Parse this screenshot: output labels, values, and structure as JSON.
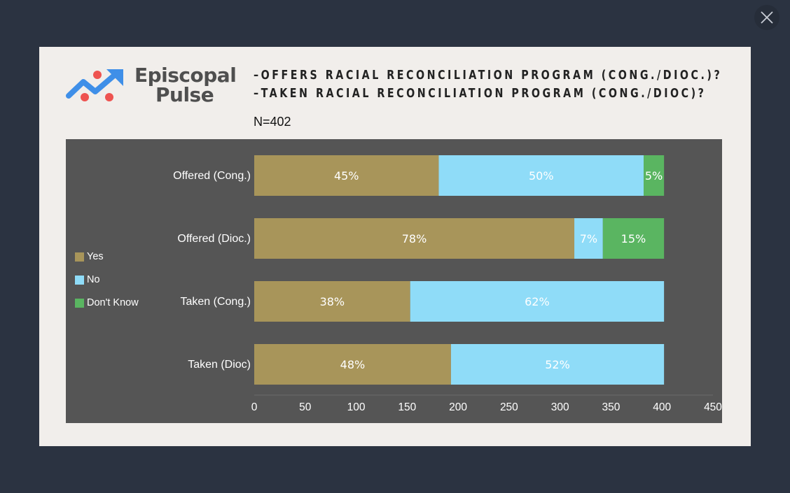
{
  "window": {
    "close_icon": "close-icon"
  },
  "logo": {
    "line1": "Episcopal",
    "line2": "Pulse",
    "icon": "trend-chart-icon"
  },
  "header": {
    "title_line1": "–OFFERS RACIAL RECONCILIATION PROGRAM (CONG./DIOC.)?",
    "title_line2": "–TAKEN RACIAL RECONCILIATION PROGRAM (CONG./DIOC)?",
    "n_label": "N=402"
  },
  "colors": {
    "yes": "#a8955a",
    "no": "#8fdcf8",
    "dont_know": "#5ab561",
    "plot_bg": "#555555",
    "page_bg": "#2b3341",
    "card_bg": "#f1eeeb"
  },
  "chart_data": {
    "type": "bar",
    "orientation": "horizontal",
    "stacked": true,
    "categories": [
      "Offered (Cong.)",
      "Offered (Dioc.)",
      "Taken (Cong.)",
      "Taken (Dioc)"
    ],
    "series": [
      {
        "name": "Yes",
        "values": [
          181,
          314,
          153,
          193
        ],
        "labels": [
          "45%",
          "78%",
          "38%",
          "48%"
        ]
      },
      {
        "name": "No",
        "values": [
          201,
          28,
          249,
          209
        ],
        "labels": [
          "50%",
          "7%",
          "62%",
          "52%"
        ]
      },
      {
        "name": "Don't Know",
        "values": [
          20,
          60,
          0,
          0
        ],
        "labels": [
          "5%",
          "15%",
          "",
          ""
        ]
      }
    ],
    "xlim": [
      0,
      450
    ],
    "xticks": [
      "0",
      "50",
      "100",
      "150",
      "200",
      "250",
      "300",
      "350",
      "400",
      "450"
    ],
    "legend": "left"
  }
}
